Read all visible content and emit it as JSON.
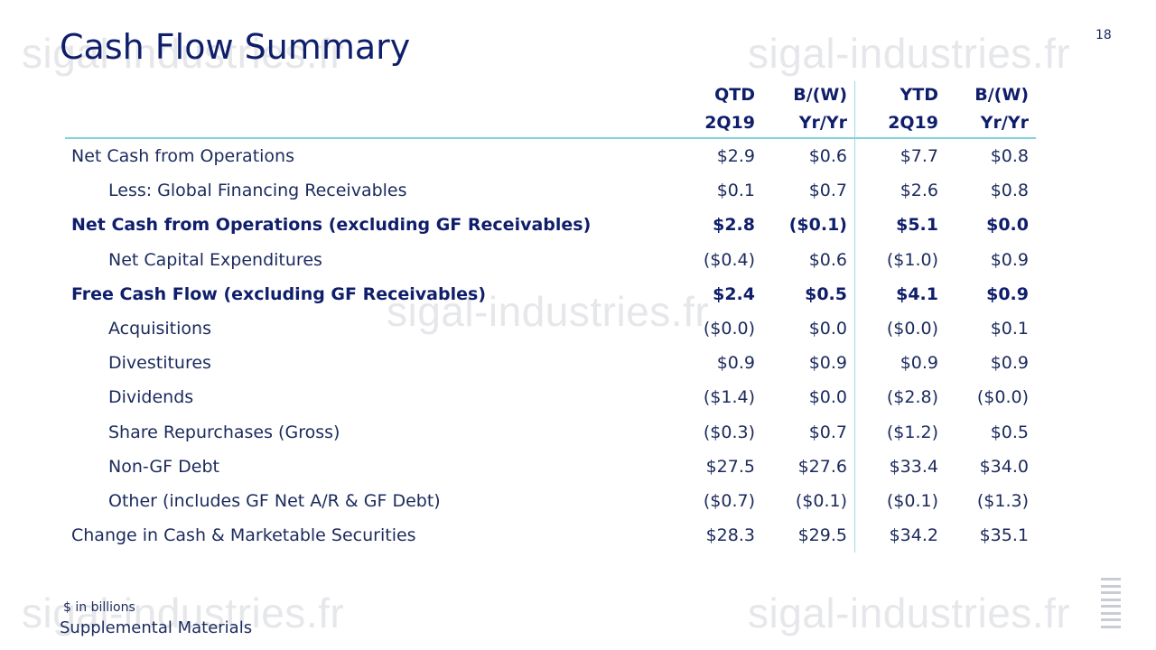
{
  "slide": {
    "title": "Cash Flow Summary",
    "page_number": "18",
    "footnote": "$ in billions",
    "footer": "Supplemental Materials",
    "watermark": "sigal-industries.fr",
    "logo": "IBM"
  },
  "table": {
    "headers": {
      "row1": [
        "QTD",
        "B/(W)",
        "YTD",
        "B/(W)"
      ],
      "row2": [
        "2Q19",
        "Yr/Yr",
        "2Q19",
        "Yr/Yr"
      ]
    },
    "rows": [
      {
        "label": "Net Cash from Operations",
        "values": [
          "$2.9",
          "$0.6",
          "$7.7",
          "$0.8"
        ]
      },
      {
        "label": "Less: Global Financing Receivables",
        "values": [
          "$0.1",
          "$0.7",
          "$2.6",
          "$0.8"
        ]
      },
      {
        "label": "Net Cash from Operations (excluding GF Receivables)",
        "values": [
          "$2.8",
          "($0.1)",
          "$5.1",
          "$0.0"
        ]
      },
      {
        "label": "Net Capital Expenditures",
        "values": [
          "($0.4)",
          "$0.6",
          "($1.0)",
          "$0.9"
        ]
      },
      {
        "label": "Free Cash Flow (excluding GF Receivables)",
        "values": [
          "$2.4",
          "$0.5",
          "$4.1",
          "$0.9"
        ]
      },
      {
        "label": "Acquisitions",
        "values": [
          "($0.0)",
          "$0.0",
          "($0.0)",
          "$0.1"
        ]
      },
      {
        "label": "Divestitures",
        "values": [
          "$0.9",
          "$0.9",
          "$0.9",
          "$0.9"
        ]
      },
      {
        "label": "Dividends",
        "values": [
          "($1.4)",
          "$0.0",
          "($2.8)",
          "($0.0)"
        ]
      },
      {
        "label": "Share Repurchases (Gross)",
        "values": [
          "($0.3)",
          "$0.7",
          "($1.2)",
          "$0.5"
        ]
      },
      {
        "label": "Non-GF Debt",
        "values": [
          "$27.5",
          "$27.6",
          "$33.4",
          "$34.0"
        ]
      },
      {
        "label": "Other (includes GF Net A/R & GF Debt)",
        "values": [
          "($0.7)",
          "($0.1)",
          "($0.1)",
          "($1.3)"
        ]
      },
      {
        "label": "Change in Cash & Marketable Securities",
        "values": [
          "$28.3",
          "$29.5",
          "$34.2",
          "$35.1"
        ]
      }
    ]
  },
  "colors": {
    "title": "#0f1e6b",
    "text": "#1b2a5c",
    "rule": "#7fd3df"
  }
}
